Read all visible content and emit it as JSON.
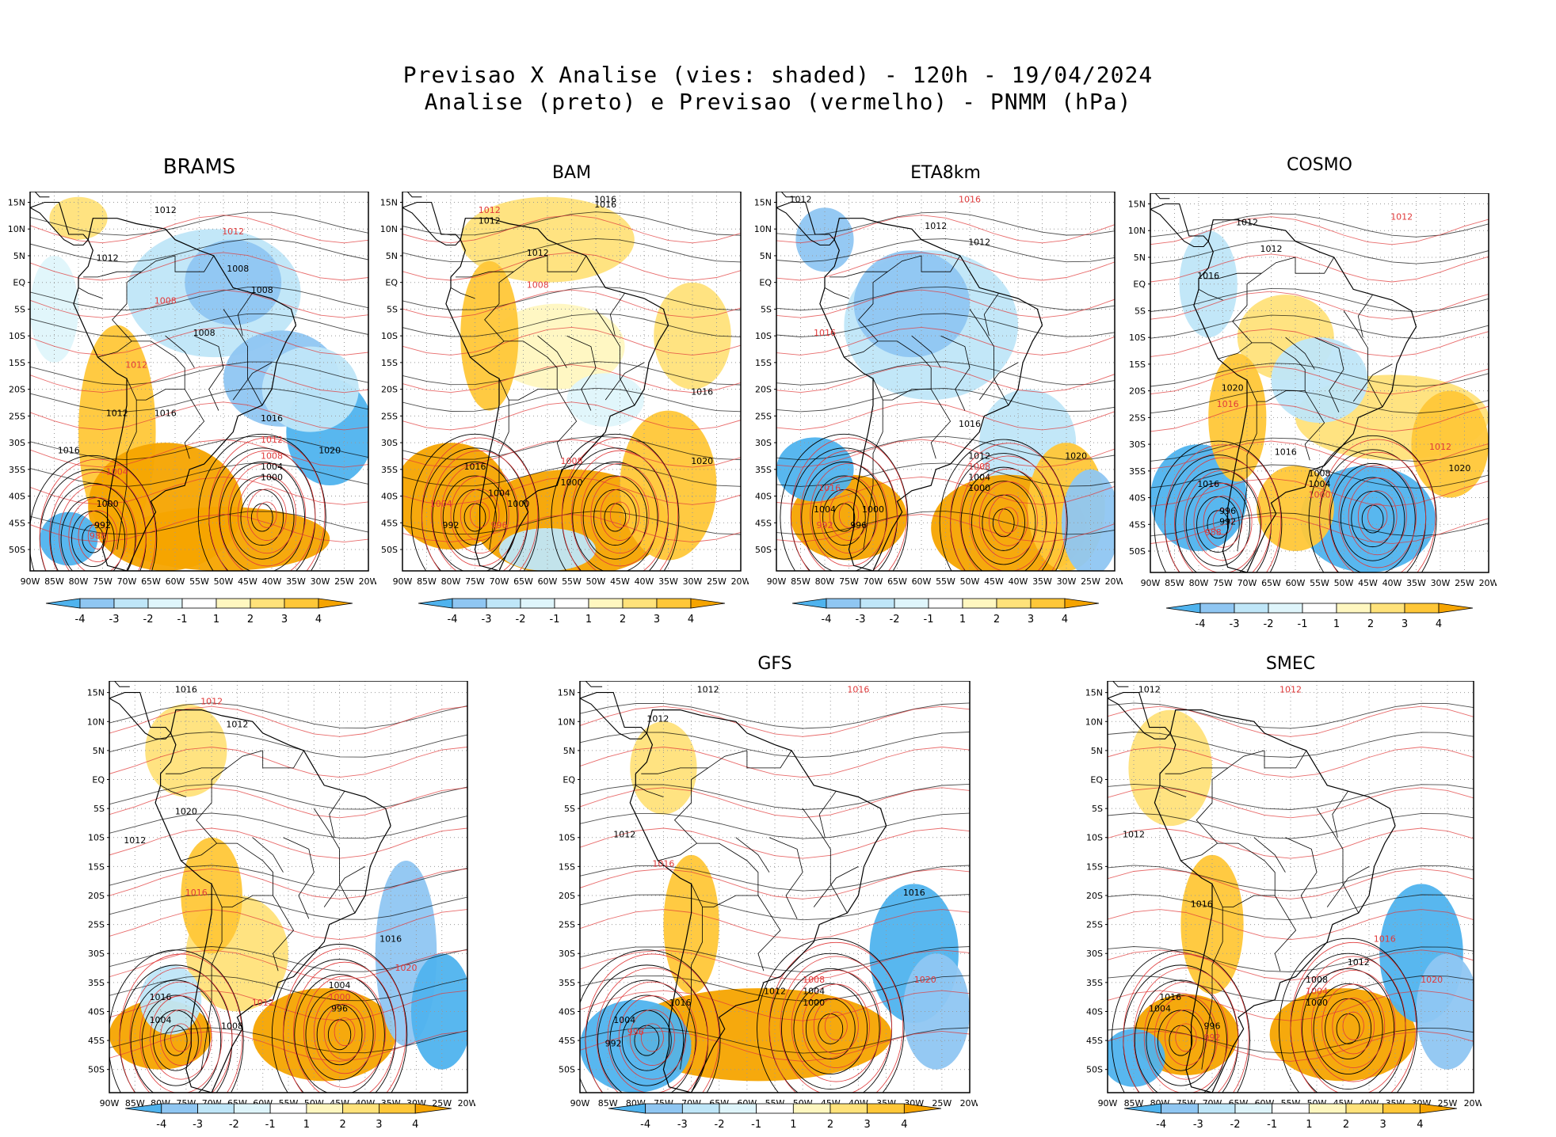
{
  "header": {
    "line1": "Previsao X Analise (vies: shaded) - 120h - 19/04/2024",
    "line2": "Analise (preto) e Previsao (vermelho) - PNMM (hPa)"
  },
  "colors": {
    "neg4": "#4fb3ee",
    "neg3": "#8fc6f2",
    "neg2": "#bfe6f8",
    "neg1": "#dff5fb",
    "pos1": "#fff7c0",
    "pos2": "#ffe27a",
    "pos3": "#ffc738",
    "pos4": "#f5a400",
    "analysis": "#000000",
    "forecast": "#e0393a"
  },
  "axes": {
    "lat_labels": [
      "15N",
      "10N",
      "5N",
      "EQ",
      "5S",
      "10S",
      "15S",
      "20S",
      "25S",
      "30S",
      "35S",
      "40S",
      "45S",
      "50S"
    ],
    "lon_labels": [
      "90W",
      "85W",
      "80W",
      "75W",
      "70W",
      "65W",
      "60W",
      "55W",
      "50W",
      "45W",
      "40W",
      "35W",
      "30W",
      "25W",
      "20W"
    ]
  },
  "colorbar": {
    "labels": [
      "-4",
      "-3",
      "-2",
      "-1",
      "1",
      "2",
      "3",
      "4"
    ]
  },
  "panels": [
    {
      "id": "brams",
      "title": "BRAMS"
    },
    {
      "id": "bam",
      "title": "BAM"
    },
    {
      "id": "eta8km",
      "title": "ETA8km"
    },
    {
      "id": "cosmo",
      "title": "COSMO"
    },
    {
      "id": "unnamed",
      "title": ""
    },
    {
      "id": "gfs",
      "title": "GFS"
    },
    {
      "id": "smec",
      "title": "SMEC"
    }
  ],
  "isobar_labels": {
    "brams": [
      "1012",
      "1012",
      "1008",
      "1012",
      "1008",
      "1008",
      "1008",
      "1012",
      "1016",
      "1016",
      "1012",
      "1016",
      "1012",
      "1008",
      "1004",
      "1000",
      "1004",
      "1000",
      "992",
      "988",
      "1020"
    ],
    "bam": [
      "1016",
      "1012",
      "1012",
      "1012",
      "1008",
      "1016",
      "1016",
      "1008",
      "1000",
      "1004",
      "1004",
      "1000",
      "992",
      "996",
      "1020",
      "1016"
    ],
    "eta8km": [
      "1012",
      "1016",
      "1012",
      "1012",
      "1016",
      "1016",
      "1012",
      "1008",
      "1004",
      "1000",
      "1016",
      "1004",
      "1000",
      "992",
      "996",
      "1020"
    ],
    "cosmo": [
      "1012",
      "1012",
      "1012",
      "1016",
      "1016",
      "1020",
      "1016",
      "1012",
      "1008",
      "1004",
      "1000",
      "996",
      "992",
      "988",
      "1016",
      "1020"
    ],
    "unnamed": [
      "1016",
      "1012",
      "1012",
      "1012",
      "1016",
      "1020",
      "1016",
      "1012",
      "1008",
      "1004",
      "1000",
      "996",
      "1016",
      "1020",
      "1004"
    ],
    "gfs": [
      "1012",
      "1016",
      "1012",
      "1012",
      "1016",
      "1016",
      "1012",
      "1008",
      "1004",
      "1000",
      "996",
      "992",
      "1004",
      "1020",
      "1016"
    ],
    "smec": [
      "1012",
      "1012",
      "1012",
      "1016",
      "1016",
      "1012",
      "1008",
      "1004",
      "1000",
      "996",
      "992",
      "1004",
      "1016",
      "1020"
    ]
  }
}
